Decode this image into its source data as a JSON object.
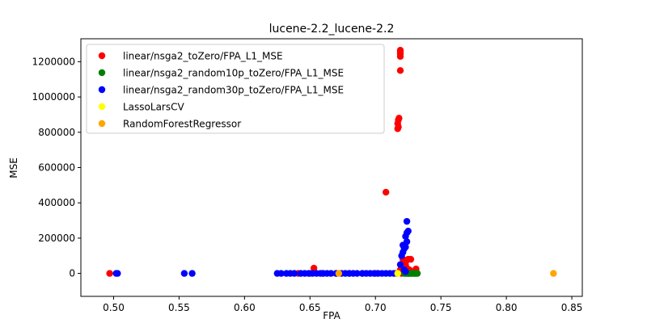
{
  "chart_data": {
    "type": "scatter",
    "title": "lucene-2.2_lucene-2.2",
    "xlabel": "FPA",
    "ylabel": "MSE",
    "xlim": [
      0.475,
      0.858
    ],
    "ylim": [
      -130000,
      1330000
    ],
    "xticks": [
      "0.50",
      "0.55",
      "0.60",
      "0.65",
      "0.70",
      "0.75",
      "0.80",
      "0.85"
    ],
    "yticks": [
      "0",
      "200000",
      "400000",
      "600000",
      "800000",
      "1000000",
      "1200000"
    ],
    "grid": false,
    "legend_position": "upper-left",
    "series": [
      {
        "name": "linear/nsga2_toZero/FPA_L1_MSE",
        "color": "#ff0000",
        "points": [
          [
            0.497,
            0
          ],
          [
            0.653,
            30000
          ],
          [
            0.641,
            0
          ],
          [
            0.65,
            0
          ],
          [
            0.66,
            0
          ],
          [
            0.67,
            0
          ],
          [
            0.68,
            0
          ],
          [
            0.69,
            0
          ],
          [
            0.7,
            0
          ],
          [
            0.708,
            460000
          ],
          [
            0.717,
            820000
          ],
          [
            0.7175,
            830000
          ],
          [
            0.717,
            850000
          ],
          [
            0.7175,
            870000
          ],
          [
            0.718,
            880000
          ],
          [
            0.719,
            1150000
          ],
          [
            0.719,
            1230000
          ],
          [
            0.719,
            1245000
          ],
          [
            0.719,
            1255000
          ],
          [
            0.719,
            1265000
          ],
          [
            0.719,
            20000
          ],
          [
            0.721,
            80000
          ],
          [
            0.722,
            70000
          ],
          [
            0.723,
            50000
          ],
          [
            0.724,
            75000
          ],
          [
            0.725,
            80000
          ],
          [
            0.727,
            80000
          ],
          [
            0.724,
            30000
          ],
          [
            0.726,
            20000
          ],
          [
            0.728,
            10000
          ],
          [
            0.731,
            25000
          ],
          [
            0.731,
            10000
          ],
          [
            0.716,
            0
          ],
          [
            0.72,
            0
          ],
          [
            0.725,
            0
          ],
          [
            0.73,
            0
          ]
        ]
      },
      {
        "name": "linear/nsga2_random10p_toZero/FPA_L1_MSE",
        "color": "#008000",
        "points": [
          [
            0.722,
            0
          ],
          [
            0.723,
            0
          ],
          [
            0.724,
            0
          ],
          [
            0.725,
            0
          ],
          [
            0.726,
            0
          ],
          [
            0.727,
            0
          ],
          [
            0.728,
            0
          ],
          [
            0.729,
            0
          ],
          [
            0.73,
            0
          ],
          [
            0.731,
            0
          ],
          [
            0.732,
            0
          ]
        ]
      },
      {
        "name": "linear/nsga2_random30p_toZero/FPA_L1_MSE",
        "color": "#0000ff",
        "points": [
          [
            0.502,
            0
          ],
          [
            0.503,
            0
          ],
          [
            0.554,
            0
          ],
          [
            0.56,
            0
          ],
          [
            0.625,
            0
          ],
          [
            0.628,
            0
          ],
          [
            0.632,
            0
          ],
          [
            0.635,
            0
          ],
          [
            0.638,
            0
          ],
          [
            0.643,
            0
          ],
          [
            0.646,
            0
          ],
          [
            0.649,
            0
          ],
          [
            0.652,
            0
          ],
          [
            0.655,
            0
          ],
          [
            0.658,
            0
          ],
          [
            0.66,
            0
          ],
          [
            0.663,
            0
          ],
          [
            0.666,
            0
          ],
          [
            0.67,
            0
          ],
          [
            0.674,
            0
          ],
          [
            0.677,
            0
          ],
          [
            0.68,
            0
          ],
          [
            0.683,
            0
          ],
          [
            0.686,
            0
          ],
          [
            0.69,
            0
          ],
          [
            0.693,
            0
          ],
          [
            0.696,
            0
          ],
          [
            0.699,
            0
          ],
          [
            0.702,
            0
          ],
          [
            0.705,
            0
          ],
          [
            0.708,
            0
          ],
          [
            0.711,
            0
          ],
          [
            0.714,
            0
          ],
          [
            0.719,
            50000
          ],
          [
            0.72,
            100000
          ],
          [
            0.721,
            120000
          ],
          [
            0.722,
            140000
          ],
          [
            0.721,
            160000
          ],
          [
            0.723,
            150000
          ],
          [
            0.724,
            180000
          ],
          [
            0.723,
            210000
          ],
          [
            0.724,
            230000
          ],
          [
            0.725,
            240000
          ],
          [
            0.724,
            295000
          ],
          [
            0.722,
            20000
          ],
          [
            0.723,
            10000
          ]
        ]
      },
      {
        "name": "LassoLarsCV",
        "color": "#ffff00",
        "points": [
          [
            0.717,
            0
          ]
        ]
      },
      {
        "name": "RandomForestRegressor",
        "color": "#ffa500",
        "points": [
          [
            0.672,
            0
          ],
          [
            0.836,
            0
          ]
        ]
      }
    ]
  }
}
